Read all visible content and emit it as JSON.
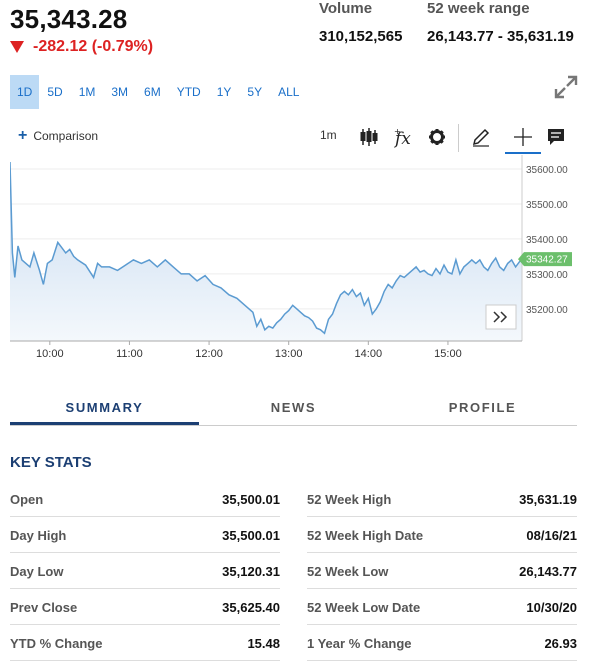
{
  "quote": {
    "price": "35,343.28",
    "change": "-282.12 (-0.79%)",
    "volume_label": "Volume",
    "volume": "310,152,565",
    "range_label": "52 week range",
    "range": "26,143.77 - 35,631.19"
  },
  "ranges": [
    "1D",
    "5D",
    "1M",
    "3M",
    "6M",
    "YTD",
    "1Y",
    "5Y",
    "ALL"
  ],
  "active_range": "1D",
  "toolbar": {
    "comparison": "Comparison",
    "interval": "1m"
  },
  "chart_data": {
    "type": "area",
    "x_ticks": [
      "10:00",
      "11:00",
      "12:00",
      "13:00",
      "14:00",
      "15:00"
    ],
    "y_ticks": [
      "35600.00",
      "35500.00",
      "35400.00",
      "35300.00",
      "35200.00"
    ],
    "ylim": [
      35108,
      35640
    ],
    "last_label": "35342.27",
    "series": [
      {
        "x": [
          9.5,
          9.53,
          9.56,
          9.6,
          9.65,
          9.7,
          9.75,
          9.8,
          9.87,
          9.92,
          9.97,
          10.03,
          10.1,
          10.15,
          10.2,
          10.25,
          10.3,
          10.35,
          10.45,
          10.55,
          10.6,
          10.65,
          10.75,
          10.85,
          10.95,
          11.05,
          11.15,
          11.25,
          11.35,
          11.45,
          11.55,
          11.65,
          11.75,
          11.85,
          11.95,
          12.05,
          12.15,
          12.25,
          12.35,
          12.45,
          12.55,
          12.6,
          12.65,
          12.7,
          12.75,
          12.8,
          12.85,
          12.9,
          12.95,
          13.0,
          13.05,
          13.1,
          13.15,
          13.2,
          13.25,
          13.3,
          13.35,
          13.4,
          13.45,
          13.5,
          13.55,
          13.6,
          13.65,
          13.7,
          13.75,
          13.8,
          13.85,
          13.9,
          13.95,
          14.0,
          14.05,
          14.1,
          14.15,
          14.2,
          14.25,
          14.3,
          14.35,
          14.4,
          14.45,
          14.5,
          14.55,
          14.6,
          14.65,
          14.7,
          14.75,
          14.8,
          14.85,
          14.9,
          14.95,
          15.0,
          15.05,
          15.1,
          15.15,
          15.2,
          15.25,
          15.3,
          15.35,
          15.4,
          15.45,
          15.5,
          15.55,
          15.6,
          15.65,
          15.7,
          15.75,
          15.8,
          15.85,
          15.9,
          15.93
        ],
        "y": [
          35620,
          35360,
          35290,
          35380,
          35340,
          35330,
          35320,
          35360,
          35310,
          35270,
          35330,
          35340,
          35390,
          35375,
          35360,
          35370,
          35350,
          35340,
          35325,
          35290,
          35330,
          35320,
          35320,
          35310,
          35325,
          35340,
          35330,
          35340,
          35320,
          35340,
          35320,
          35300,
          35300,
          35280,
          35295,
          35270,
          35260,
          35240,
          35230,
          35210,
          35190,
          35150,
          35170,
          35140,
          35150,
          35145,
          35160,
          35170,
          35185,
          35195,
          35210,
          35200,
          35190,
          35180,
          35175,
          35165,
          35145,
          35140,
          35130,
          35170,
          35185,
          35215,
          35240,
          35250,
          35240,
          35255,
          35235,
          35245,
          35210,
          35230,
          35185,
          35200,
          35220,
          35250,
          35270,
          35260,
          35280,
          35295,
          35290,
          35300,
          35310,
          35320,
          35305,
          35310,
          35300,
          35295,
          35315,
          35300,
          35325,
          35305,
          35300,
          35340,
          35300,
          35320,
          35330,
          35340,
          35330,
          35340,
          35320,
          35310,
          35330,
          35345,
          35320,
          35310,
          35330,
          35340,
          35320,
          35335,
          35342.27
        ]
      }
    ]
  },
  "tabs": [
    "SUMMARY",
    "NEWS",
    "PROFILE"
  ],
  "key_stats": {
    "title": "KEY STATS",
    "left": [
      {
        "label": "Open",
        "value": "35,500.01"
      },
      {
        "label": "Day High",
        "value": "35,500.01"
      },
      {
        "label": "Day Low",
        "value": "35,120.31"
      },
      {
        "label": "Prev Close",
        "value": "35,625.40"
      },
      {
        "label": "YTD % Change",
        "value": "15.48"
      }
    ],
    "right": [
      {
        "label": "52 Week High",
        "value": "35,631.19"
      },
      {
        "label": "52 Week High Date",
        "value": "08/16/21"
      },
      {
        "label": "52 Week Low",
        "value": "26,143.77"
      },
      {
        "label": "52 Week Low Date",
        "value": "10/30/20"
      },
      {
        "label": "1 Year % Change",
        "value": "26.93"
      }
    ]
  },
  "colors": {
    "accent": "#1a6fc9",
    "navy": "#1c3f73",
    "down": "#dd2222",
    "line": "#5b9bd1",
    "badge": "#6cbf6c"
  }
}
